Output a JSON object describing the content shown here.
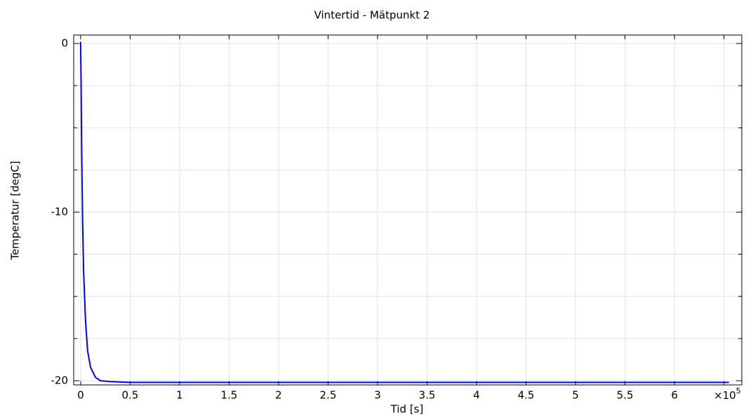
{
  "chart_data": {
    "type": "line",
    "title": "Vintertid - Mätpunkt 2",
    "x_label": "Tid [s]",
    "y_label": "Temperatur [degC]",
    "x_scale_label": "×10",
    "x_scale_exponent": 5,
    "x": [
      0,
      0.005,
      0.01,
      0.02,
      0.03,
      0.05,
      0.07,
      0.1,
      0.15,
      0.2,
      0.3,
      0.5,
      1,
      2,
      3,
      4,
      5,
      6,
      6.55
    ],
    "series": [
      {
        "name": "Temperatur",
        "color": "#0000ff",
        "values": [
          0.1,
          -2.5,
          -6,
          -10.5,
          -13.5,
          -16.5,
          -18.2,
          -19.2,
          -19.8,
          -20,
          -20.05,
          -20.1,
          -20.1,
          -20.1,
          -20.1,
          -20.1,
          -20.1,
          -20.1,
          -20.1
        ]
      }
    ],
    "xlim": [
      -0.07,
      6.68
    ],
    "ylim": [
      -20.25,
      0.5
    ],
    "xticks": [
      0,
      0.5,
      1,
      1.5,
      2,
      2.5,
      3,
      3.5,
      4,
      4.5,
      5,
      5.5,
      6
    ],
    "x_minor_ticks": [
      6.5
    ],
    "yticks": [
      -20,
      -10,
      0
    ],
    "y_minor_ticks": [
      -17.5,
      -15,
      -12.5,
      -7.5,
      -5,
      -2.5
    ],
    "grid": true
  }
}
